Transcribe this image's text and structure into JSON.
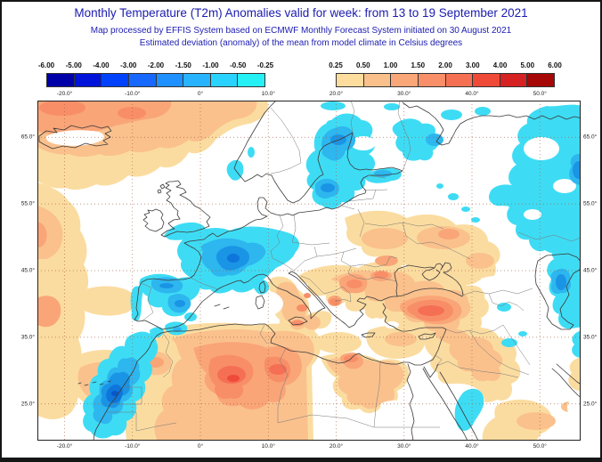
{
  "header": {
    "title": "Monthly Temperature (T2m) Anomalies valid for week: from 13 to 19 September 2021",
    "subtitle1": "Map processed by EFFIS System based on ECMWF Monthly Forecast System initiated on 30 August 2021",
    "subtitle2": "Estimated deviation (anomaly) of the mean from model climate in Celsius degrees",
    "text_color": "#1b1bb0"
  },
  "colorbars": {
    "negative": {
      "labels": [
        "-6.00",
        "-5.00",
        "-4.00",
        "-3.00",
        "-2.00",
        "-1.50",
        "-1.00",
        "-0.50",
        "-0.25"
      ],
      "colors": [
        "#0000A8",
        "#0013DA",
        "#0042FB",
        "#1768FF",
        "#1F90FF",
        "#28B3FF",
        "#2AD3FF",
        "#25F0F4"
      ]
    },
    "positive": {
      "labels": [
        "0.25",
        "0.50",
        "1.00",
        "1.50",
        "2.00",
        "3.00",
        "4.00",
        "5.00",
        "6.00"
      ],
      "colors": [
        "#FCDD9E",
        "#FAC08B",
        "#F9A678",
        "#F88F69",
        "#F57053",
        "#EF4A38",
        "#D62222",
        "#A60707"
      ]
    }
  },
  "map": {
    "top_ticks": [
      "-20.0°",
      "-10.0°",
      "0°",
      "10.0°",
      "20.0°",
      "30.0°",
      "40.0°",
      "50.0°"
    ],
    "bottom_ticks": [
      "-20.0°",
      "-10.0°",
      "0°",
      "10.0°",
      "20.0°",
      "30.0°",
      "40.0°",
      "50.0°"
    ],
    "left_ticks": [
      "65.0°",
      "55.0°",
      "45.0°",
      "35.0°",
      "25.0°"
    ],
    "right_ticks": [
      "65.0°",
      "55.0°",
      "45.0°",
      "35.0°",
      "25.0°"
    ],
    "palette": {
      "warm": {
        "f1": "#FBDCA0",
        "f2": "#FAC18D",
        "f3": "#F9A578",
        "f4": "#F88E68",
        "f5": "#F56F55",
        "f6": "#F04A38"
      },
      "cold": {
        "c1": "#3EDCF4",
        "c2": "#2EB6EF",
        "c3": "#1A94E5",
        "c4": "#0E76DA",
        "c5": "#0A57C8"
      },
      "white": "#FFFFFF",
      "grid": "#A05A3C",
      "coast": "#3B3B3B",
      "border": "#777777"
    }
  }
}
